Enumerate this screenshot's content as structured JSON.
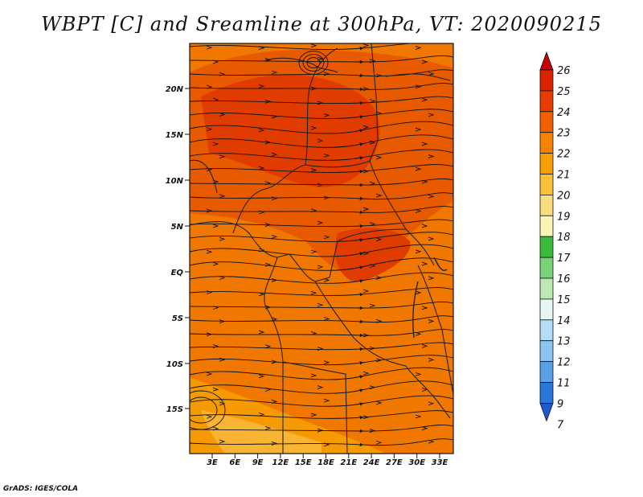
{
  "title": "WBPT [C] and Sreamline at 300hPa, VT: 2020090215",
  "credit": "GrADS: IGES/COLA",
  "map": {
    "lat_labels": [
      "20N",
      "15N",
      "10N",
      "5N",
      "EQ",
      "5S",
      "10S",
      "15S"
    ],
    "lon_labels": [
      "3E",
      "6E",
      "9E",
      "12E",
      "15E",
      "18E",
      "21E",
      "24E",
      "27E",
      "30E",
      "33E"
    ],
    "colors": {
      "base": "#f07800",
      "warm": "#e85a00",
      "hot": "#e03c00",
      "cool": "#f59a00",
      "mild": "#f8b432"
    }
  },
  "colorbar": {
    "levels": [
      "26",
      "25",
      "24",
      "23",
      "22",
      "21",
      "20",
      "19",
      "18",
      "17",
      "16",
      "15",
      "14",
      "13",
      "12",
      "11",
      "9",
      "7"
    ],
    "colors": [
      "#c80000",
      "#dd2200",
      "#e63c00",
      "#f06000",
      "#f58200",
      "#f8a000",
      "#fac038",
      "#fadc80",
      "#fbf6b4",
      "#3cba3c",
      "#78d278",
      "#bce8b4",
      "#e6f6f0",
      "#b4dcf6",
      "#8cc3f0",
      "#5aa0e6",
      "#2878dc",
      "#1e5ad2"
    ]
  }
}
